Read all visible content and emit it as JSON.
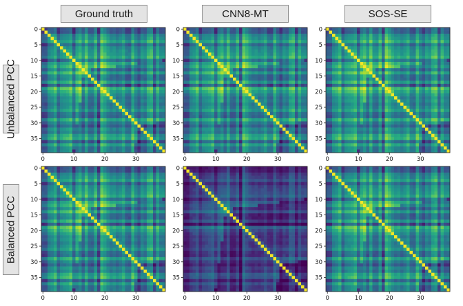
{
  "columns": [
    "Ground truth",
    "CNN8-MT",
    "SOS-SE"
  ],
  "rows": [
    "Unbalanced PCC",
    "Balanced PCC"
  ],
  "colors": {
    "diagonal": "#f5e626",
    "base": "#2c8c8a",
    "colormap": "viridis"
  },
  "chart_data": [
    {
      "type": "heatmap",
      "title": "Ground truth",
      "row_label": "Unbalanced PCC",
      "size": 40,
      "x_ticks": [
        0,
        10,
        20,
        30
      ],
      "y_ticks": [
        0,
        5,
        10,
        15,
        20,
        25,
        30,
        35
      ],
      "value_range": [
        0,
        1
      ],
      "diagonal_value": 1.0,
      "typical_off_diagonal": 0.45
    },
    {
      "type": "heatmap",
      "title": "CNN8-MT",
      "row_label": "Unbalanced PCC",
      "size": 40,
      "x_ticks": [
        0,
        10,
        20,
        30
      ],
      "y_ticks": [
        0,
        5,
        10,
        15,
        20,
        25,
        30,
        35
      ],
      "value_range": [
        0,
        1
      ],
      "diagonal_value": 1.0,
      "typical_off_diagonal": 0.45
    },
    {
      "type": "heatmap",
      "title": "SOS-SE",
      "row_label": "Unbalanced PCC",
      "size": 40,
      "x_ticks": [
        0,
        10,
        20,
        30
      ],
      "y_ticks": [
        0,
        5,
        10,
        15,
        20,
        25,
        30,
        35
      ],
      "value_range": [
        0,
        1
      ],
      "diagonal_value": 1.0,
      "typical_off_diagonal": 0.48
    },
    {
      "type": "heatmap",
      "title": "Ground truth",
      "row_label": "Balanced PCC",
      "size": 40,
      "x_ticks": [
        0,
        10,
        20,
        30
      ],
      "y_ticks": [
        0,
        5,
        10,
        15,
        20,
        25,
        30,
        35
      ],
      "value_range": [
        0,
        1
      ],
      "diagonal_value": 1.0,
      "typical_off_diagonal": 0.45
    },
    {
      "type": "heatmap",
      "title": "CNN8-MT",
      "row_label": "Balanced PCC",
      "size": 40,
      "x_ticks": [
        0,
        10,
        20,
        30
      ],
      "y_ticks": [
        0,
        5,
        10,
        15,
        20,
        25,
        30,
        35
      ],
      "value_range": [
        0,
        1
      ],
      "diagonal_value": 1.0,
      "typical_off_diagonal": 0.18
    },
    {
      "type": "heatmap",
      "title": "SOS-SE",
      "row_label": "Balanced PCC",
      "size": 40,
      "x_ticks": [
        0,
        10,
        20,
        30
      ],
      "y_ticks": [
        0,
        5,
        10,
        15,
        20,
        25,
        30,
        35
      ],
      "value_range": [
        0,
        1
      ],
      "diagonal_value": 1.0,
      "typical_off_diagonal": 0.45
    }
  ]
}
